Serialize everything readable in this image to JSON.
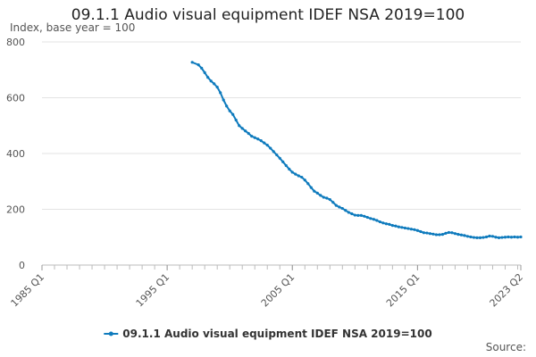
{
  "chart_data": {
    "type": "line",
    "title": "09.1.1 Audio visual equipment IDEF NSA 2019=100",
    "subtitle": "Index, base year = 100",
    "xlabel": "",
    "ylabel": "",
    "ylim": [
      0,
      800
    ],
    "yticks": [
      0,
      200,
      400,
      600,
      800
    ],
    "xlim": [
      "1985 Q1",
      "2023 Q2"
    ],
    "xticks": [
      "1985 Q1",
      "1995 Q1",
      "2005 Q1",
      "2015 Q1",
      "2023 Q2"
    ],
    "grid": true,
    "legend": "bottom",
    "series": [
      {
        "name": "09.1.1 Audio visual equipment IDEF NSA 2019=100",
        "color": "#0f7bbd",
        "points": [
          [
            "1997 Q1",
            727
          ],
          [
            "1997 Q3",
            718
          ],
          [
            "1997 Q4",
            706
          ],
          [
            "1998 Q1",
            690
          ],
          [
            "1998 Q2",
            673
          ],
          [
            "1998 Q3",
            660
          ],
          [
            "1998 Q4",
            650
          ],
          [
            "1999 Q1",
            638
          ],
          [
            "1999 Q2",
            618
          ],
          [
            "1999 Q3",
            592
          ],
          [
            "1999 Q4",
            570
          ],
          [
            "2000 Q1",
            553
          ],
          [
            "2000 Q2",
            540
          ],
          [
            "2000 Q3",
            520
          ],
          [
            "2000 Q4",
            500
          ],
          [
            "2001 Q1",
            490
          ],
          [
            "2001 Q2",
            481
          ],
          [
            "2001 Q3",
            472
          ],
          [
            "2001 Q4",
            462
          ],
          [
            "2002 Q1",
            457
          ],
          [
            "2002 Q2",
            452
          ],
          [
            "2002 Q3",
            446
          ],
          [
            "2002 Q4",
            438
          ],
          [
            "2003 Q1",
            430
          ],
          [
            "2003 Q2",
            419
          ],
          [
            "2003 Q3",
            407
          ],
          [
            "2003 Q4",
            395
          ],
          [
            "2004 Q1",
            383
          ],
          [
            "2004 Q2",
            370
          ],
          [
            "2004 Q3",
            357
          ],
          [
            "2004 Q4",
            344
          ],
          [
            "2005 Q1",
            333
          ],
          [
            "2005 Q2",
            326
          ],
          [
            "2005 Q3",
            320
          ],
          [
            "2005 Q4",
            315
          ],
          [
            "2006 Q1",
            305
          ],
          [
            "2006 Q2",
            292
          ],
          [
            "2006 Q3",
            278
          ],
          [
            "2006 Q4",
            265
          ],
          [
            "2007 Q1",
            258
          ],
          [
            "2007 Q2",
            250
          ],
          [
            "2007 Q3",
            243
          ],
          [
            "2007 Q4",
            240
          ],
          [
            "2008 Q1",
            235
          ],
          [
            "2008 Q2",
            225
          ],
          [
            "2008 Q3",
            214
          ],
          [
            "2008 Q4",
            208
          ],
          [
            "2009 Q1",
            203
          ],
          [
            "2009 Q2",
            196
          ],
          [
            "2009 Q3",
            189
          ],
          [
            "2009 Q4",
            184
          ],
          [
            "2010 Q1",
            179
          ],
          [
            "2010 Q2",
            178
          ],
          [
            "2010 Q3",
            178
          ],
          [
            "2010 Q4",
            175
          ],
          [
            "2011 Q1",
            171
          ],
          [
            "2011 Q2",
            167
          ],
          [
            "2011 Q3",
            164
          ],
          [
            "2011 Q4",
            160
          ],
          [
            "2012 Q1",
            155
          ],
          [
            "2012 Q2",
            151
          ],
          [
            "2012 Q3",
            148
          ],
          [
            "2012 Q4",
            146
          ],
          [
            "2013 Q1",
            142
          ],
          [
            "2013 Q2",
            140
          ],
          [
            "2013 Q3",
            137
          ],
          [
            "2013 Q4",
            135
          ],
          [
            "2014 Q1",
            133
          ],
          [
            "2014 Q2",
            131
          ],
          [
            "2014 Q3",
            129
          ],
          [
            "2014 Q4",
            127
          ],
          [
            "2015 Q1",
            124
          ],
          [
            "2015 Q2",
            120
          ],
          [
            "2015 Q3",
            116
          ],
          [
            "2015 Q4",
            115
          ],
          [
            "2016 Q1",
            113
          ],
          [
            "2016 Q2",
            111
          ],
          [
            "2016 Q3",
            109
          ],
          [
            "2016 Q4",
            109
          ],
          [
            "2017 Q1",
            110
          ],
          [
            "2017 Q2",
            114
          ],
          [
            "2017 Q3",
            117
          ],
          [
            "2017 Q4",
            116
          ],
          [
            "2018 Q1",
            113
          ],
          [
            "2018 Q2",
            110
          ],
          [
            "2018 Q3",
            108
          ],
          [
            "2018 Q4",
            106
          ],
          [
            "2019 Q1",
            103
          ],
          [
            "2019 Q2",
            101
          ],
          [
            "2019 Q3",
            99
          ],
          [
            "2019 Q4",
            98
          ],
          [
            "2020 Q1",
            98
          ],
          [
            "2020 Q2",
            99
          ],
          [
            "2020 Q3",
            101
          ],
          [
            "2020 Q4",
            104
          ],
          [
            "2021 Q1",
            103
          ],
          [
            "2021 Q2",
            100
          ],
          [
            "2021 Q3",
            98
          ],
          [
            "2021 Q4",
            99
          ],
          [
            "2022 Q1",
            100
          ],
          [
            "2022 Q2",
            101
          ],
          [
            "2022 Q3",
            100
          ],
          [
            "2022 Q4",
            101
          ],
          [
            "2023 Q1",
            100
          ],
          [
            "2023 Q2",
            101
          ]
        ]
      }
    ]
  },
  "footer": {
    "source_label": "Source:"
  }
}
